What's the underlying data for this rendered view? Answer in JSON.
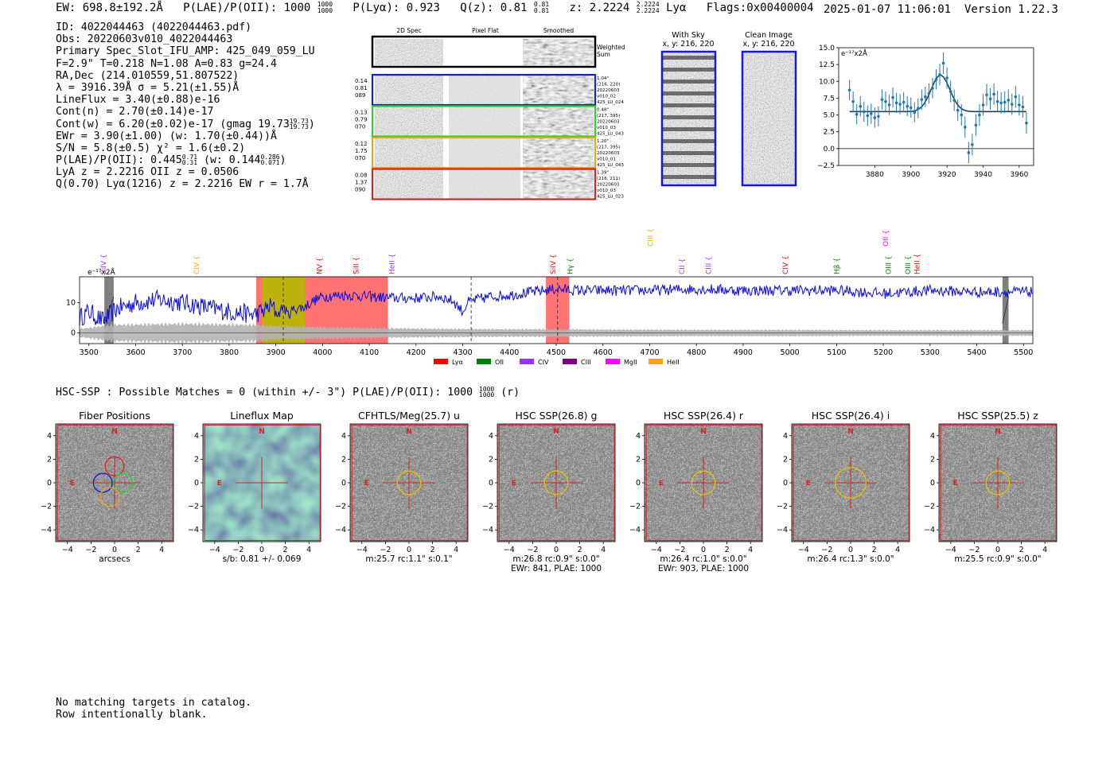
{
  "header": {
    "left": "EW: 698.8±192.2Å   P(LAE)/P(OII): 1000 1000/1000   P(Lyα): 0.923   Q(z): 0.81 0.81/0.81   z: 2.2224 2.2224/2.2224  Lyα   Flags:0x00400004",
    "ew": "EW: 698.8±192.2Å",
    "plae": "P(LAE)/P(OII): 1000",
    "plae_hi": "1000",
    "plae_lo": "1000",
    "plya": "P(Lyα): 0.923",
    "qz": "Q(z): 0.81",
    "qz_hi": "0.81",
    "qz_lo": "0.81",
    "z": "z: 2.2224",
    "z_hi": "2.2224",
    "z_lo": "2.2224",
    "line": "Lyα",
    "flags": "Flags:0x00400004",
    "timestamp": "2025-01-07 11:06:01",
    "version": "Version 1.22.3"
  },
  "info": {
    "id": "ID: 4022044463 (4022044463.pdf)",
    "obs": "Obs: 20220603v010_4022044463",
    "primary": "Primary Spec_Slot_IFU_AMP: 425_049_059_LU",
    "params": "F=2.9\"  T=0.218  N=1.08  A=0.83  g=24.4",
    "radec": "RA,Dec (214.010559,51.807522)",
    "lambda": "λ = 3916.39Å  σ = 5.21(±1.55)Å",
    "lineflux": "LineFlux = 3.40(±0.88)e-16",
    "contn": "Cont(n) = 2.70(±0.14)e-17",
    "contw": "Cont(w) = 6.20(±0.02)e-17 (gmag 19.73",
    "contw_hi": "19.73",
    "contw_lo": "19.73",
    "ewr": "EWr = 3.90(±1.00) (w: 1.70(±0.44))Å",
    "sn": "S/N = 5.8(±0.5)  χ² = 1.6(±0.2)",
    "plae2": "P(LAE)/P(OII): 0.445",
    "plae2_hi": "0.71",
    "plae2_lo": "0.31",
    "plae2_w": "(w: 0.144",
    "plae2_w_hi": "0.286",
    "plae2_w_lo": "0.071",
    "lya_z": "LyA z = 2.2216  OII z = 0.0506",
    "q": "Q(0.70) Lyα(1216) z = 2.2216  EW r = 1.7Å"
  },
  "cutouts": {
    "col_headers": [
      "2D Spec",
      "Pixel Flat",
      "Smoothed"
    ],
    "weighted_label": [
      "Weighted",
      "Sum"
    ],
    "rows": [
      {
        "color": "#1a1ad6",
        "left": [
          "0.14",
          "0.81",
          "089"
        ],
        "right": [
          "1.04\"",
          "(216, 220)",
          "20220603",
          "v010_02",
          "425_LU_024"
        ]
      },
      {
        "color": "#2ad42a",
        "left": [
          "0.13",
          "0.79",
          "070"
        ],
        "right": [
          "0.48\"",
          "(217, 395)",
          "20220603",
          "v010_03",
          "425_LU_043"
        ]
      },
      {
        "color": "#f0a020",
        "left": [
          "0.12",
          "1.75",
          "070"
        ],
        "right": [
          "1.20\"",
          "(217, 395)",
          "20220603",
          "v010_01",
          "425_LU_043"
        ]
      },
      {
        "color": "#e01e1e",
        "left": [
          "0.08",
          "1.37",
          "090"
        ],
        "right": [
          "1.39\"",
          "(216, 211)",
          "20220603",
          "v010_03",
          "425_LU_023"
        ]
      }
    ]
  },
  "sky": {
    "with_sky": [
      "With Sky",
      "x, y: 216, 220"
    ],
    "clean": [
      "Clean Image",
      "x, y: 216, 220"
    ]
  },
  "panels": [
    {
      "title": "Fiber Positions",
      "cap1": "arcsecs",
      "cap2": ""
    },
    {
      "title": "Lineflux Map",
      "cap1": "s/b: 0.81 +/- 0.069",
      "cap2": ""
    },
    {
      "title": "CFHTLS/Meg(25.7) u",
      "cap1": "m:25.7 rc:1.1\"  s:0.1\"",
      "cap2": ""
    },
    {
      "title": "HSC SSP(26.8) g",
      "cap1": "m:26.8 rc:0.9\"  s:0.0\"",
      "cap2": "EWr: 841, PLAE: 1000"
    },
    {
      "title": "HSC SSP(26.4) r",
      "cap1": "m:26.4 rc:1.0\"  s:0.0\"",
      "cap2": "EWr: 903, PLAE: 1000"
    },
    {
      "title": "HSC SSP(26.4) i",
      "cap1": "m:26.4 rc:1.3\"  s:0.0\"",
      "cap2": ""
    },
    {
      "title": "HSC SSP(25.5) z",
      "cap1": "m:25.5 rc:0.9\"  s:0.0\"",
      "cap2": ""
    }
  ],
  "panel_axis": {
    "ticks": [
      "−4",
      "−2",
      "0",
      "2",
      "4"
    ],
    "north": "N",
    "east": "E"
  },
  "hsc_header": {
    "text": "HSC-SSP : Possible Matches = 0 (within +/- 3\")  P(LAE)/P(OII): 1000",
    "hi": "1000",
    "lo": "1000",
    "tail": "(r)"
  },
  "footer": {
    "line1": "No matching targets in catalog.",
    "line2": "Row intentionally blank."
  },
  "colors": {
    "spec": "#0a0ae6",
    "fit": "#1f77b4",
    "gray": "#b3b3b3",
    "lya": "#ff0000",
    "oii": "#008000",
    "civ": "#9b30ff",
    "ciii": "#800080",
    "mgii": "#ff00ff",
    "heii": "#ffa500"
  },
  "chart_data": [
    {
      "type": "scatter",
      "title": "",
      "ylabel_unit": "e⁻¹⁷x2Å",
      "xlim": [
        3860,
        3968
      ],
      "ylim": [
        -2.5,
        15
      ],
      "xticks": [
        3880,
        3900,
        3920,
        3940,
        3960
      ],
      "yticks": [
        -2.5,
        0.0,
        2.5,
        5.0,
        7.5,
        10.0,
        12.5,
        15.0
      ],
      "ytick_labels": [
        "−2.5",
        "0.0",
        "2.5",
        "5.0",
        "7.5",
        "10.0",
        "12.5",
        "15.0"
      ],
      "points": {
        "x": [
          3866,
          3868,
          3870,
          3872,
          3874,
          3876,
          3878,
          3880,
          3882,
          3884,
          3886,
          3888,
          3890,
          3892,
          3894,
          3896,
          3898,
          3900,
          3902,
          3904,
          3906,
          3908,
          3910,
          3912,
          3914,
          3916,
          3918,
          3920,
          3922,
          3924,
          3926,
          3928,
          3930,
          3932,
          3934,
          3936,
          3938,
          3940,
          3942,
          3944,
          3946,
          3948,
          3950,
          3952,
          3954,
          3956,
          3958,
          3960,
          3962,
          3964
        ],
        "y": [
          8.7,
          7.0,
          5.1,
          6.3,
          5.5,
          4.9,
          5.2,
          4.6,
          4.8,
          7.3,
          7.0,
          6.5,
          7.6,
          6.8,
          6.6,
          6.9,
          6.3,
          6.1,
          5.4,
          6.0,
          7.3,
          7.7,
          8.2,
          9.0,
          10.3,
          11.0,
          12.7,
          10.5,
          8.5,
          7.2,
          5.7,
          5.0,
          3.2,
          -0.6,
          0.6,
          3.5,
          5.0,
          6.5,
          8.0,
          7.4,
          8.1,
          7.0,
          6.8,
          6.9,
          7.2,
          6.6,
          7.7,
          6.5,
          6.2,
          3.8
        ],
        "err": [
          1.5,
          1.5,
          1.5,
          1.5,
          1.5,
          1.5,
          1.5,
          1.5,
          1.5,
          1.5,
          1.5,
          1.5,
          1.5,
          1.5,
          1.5,
          1.5,
          1.5,
          1.5,
          1.5,
          1.5,
          1.5,
          1.5,
          1.5,
          1.5,
          1.5,
          1.6,
          1.6,
          1.6,
          1.6,
          1.6,
          1.6,
          1.6,
          1.6,
          1.6,
          1.6,
          1.6,
          1.6,
          1.6,
          1.6,
          1.6,
          1.6,
          1.6,
          1.6,
          1.6,
          1.6,
          1.6,
          1.6,
          1.6,
          1.6,
          1.6
        ]
      },
      "fit": {
        "baseline": 5.5,
        "amplitude": 5.4,
        "center": 3916.39,
        "sigma": 5.21,
        "x_start": 3866,
        "x_end": 3964
      }
    },
    {
      "type": "line",
      "title": "",
      "ylabel_unit": "e⁻¹⁷x2Å",
      "xlim": [
        3480,
        5520
      ],
      "ylim": [
        -3.5,
        18.5
      ],
      "xticks": [
        3500,
        3600,
        3700,
        3800,
        3900,
        4000,
        4100,
        4200,
        4300,
        4400,
        4500,
        4600,
        4700,
        4800,
        4900,
        5000,
        5100,
        5200,
        5300,
        5400,
        5500
      ],
      "yticks": [
        0,
        10
      ],
      "spectrum_knots": {
        "x": [
          3480,
          3500,
          3530,
          3560,
          3600,
          3650,
          3700,
          3750,
          3800,
          3830,
          3850,
          3870,
          3890,
          3905,
          3916,
          3925,
          3940,
          3960,
          3980,
          4000,
          4050,
          4100,
          4150,
          4200,
          4250,
          4280,
          4300,
          4310,
          4330,
          4360,
          4400,
          4450,
          4500,
          4550,
          4600,
          4700,
          4800,
          4900,
          5000,
          5050,
          5100,
          5150,
          5200,
          5250,
          5300,
          5400,
          5520
        ],
        "y": [
          5,
          7,
          4,
          8,
          10,
          11,
          10,
          8.5,
          7,
          6.5,
          6,
          7,
          9,
          6,
          9,
          6,
          8,
          8.5,
          10.5,
          12,
          12.5,
          12,
          11.5,
          11.5,
          12,
          10.5,
          7,
          10,
          11,
          12,
          12.5,
          13.5,
          14.5,
          14,
          14,
          14,
          14.5,
          14,
          14,
          14,
          14,
          13.5,
          13,
          13.5,
          14,
          13.5,
          13.5
        ]
      },
      "error_band_knots": {
        "x": [
          3480,
          3550,
          3700,
          3860,
          3900,
          3960,
          4000,
          4100,
          4200,
          4300,
          4400,
          4500,
          4600,
          4800,
          5000,
          5200,
          5400,
          5520
        ],
        "y": [
          1.3,
          2.6,
          3.0,
          2.6,
          2.2,
          2.0,
          1.8,
          1.6,
          1.4,
          1.3,
          1.2,
          1.2,
          1.1,
          1.0,
          1.0,
          0.9,
          0.9,
          0.9
        ]
      },
      "shaded_regions": [
        {
          "x0": 3858,
          "x1": 4140,
          "color": "#ff0000",
          "label": "Lyα"
        },
        {
          "x0": 3870,
          "x1": 3962,
          "color": "#b5b900",
          "label": ""
        },
        {
          "x0": 4478,
          "x1": 4528,
          "color": "#ff0000",
          "label": "Lyα"
        }
      ],
      "masked_bands": [
        {
          "x0": 3533,
          "x1": 3553
        },
        {
          "x0": 5455,
          "x1": 5468
        }
      ],
      "vlines": [
        3916,
        4318,
        4503
      ],
      "line_labels": [
        {
          "label": "SiIV",
          "x": 3531,
          "color": "#9b30ff",
          "row": 0
        },
        {
          "label": "CIV",
          "x": 3730,
          "color": "#ffa500",
          "row": 0
        },
        {
          "label": "NV",
          "x": 3993,
          "color": "#ff0000",
          "row": 0
        },
        {
          "label": "SiII",
          "x": 4072,
          "color": "#ff0000",
          "row": 0
        },
        {
          "label": "HeII",
          "x": 4148,
          "color": "#9b30ff",
          "row": 0
        },
        {
          "label": "CIII",
          "x": 4702,
          "color": "#ffa500",
          "row": 1
        },
        {
          "label": "SiIV",
          "x": 4493,
          "color": "#ff0000",
          "row": 0
        },
        {
          "label": "Hγ",
          "x": 4530,
          "color": "#008000",
          "row": 0
        },
        {
          "label": "CII",
          "x": 4769,
          "color": "#9b30ff",
          "row": 0
        },
        {
          "label": "CIII",
          "x": 4826,
          "color": "#9b30ff",
          "row": 0
        },
        {
          "label": "CIV",
          "x": 4990,
          "color": "#ff0000",
          "row": 0
        },
        {
          "label": "Hβ",
          "x": 5100,
          "color": "#008000",
          "row": 0
        },
        {
          "label": "OII",
          "x": 5205,
          "color": "#ff00ff",
          "row": 1
        },
        {
          "label": "OIII",
          "x": 5211,
          "color": "#008000",
          "row": 0
        },
        {
          "label": "OIII",
          "x": 5253,
          "color": "#008000",
          "row": 0
        },
        {
          "label": "HeII",
          "x": 5272,
          "color": "#ff0000",
          "row": 0
        }
      ],
      "legend": [
        {
          "label": "Lyα",
          "color": "#ff0000"
        },
        {
          "label": "OII",
          "color": "#008000"
        },
        {
          "label": "CIV",
          "color": "#9b30ff"
        },
        {
          "label": "CIII",
          "color": "#800080"
        },
        {
          "label": "MgII",
          "color": "#ff00ff"
        },
        {
          "label": "HeII",
          "color": "#ffa500"
        }
      ]
    }
  ]
}
